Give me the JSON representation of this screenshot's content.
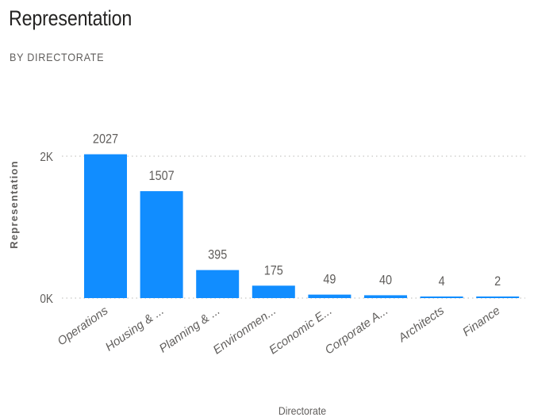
{
  "header": {
    "title": "Representation",
    "subtitle": "BY DIRECTORATE"
  },
  "chart_data": {
    "type": "bar",
    "title": "Representation",
    "subtitle": "BY DIRECTORATE",
    "xlabel": "Directorate",
    "ylabel": "Representation",
    "categories": [
      "Operations",
      "Housing & ...",
      "Planning & ...",
      "Environmen...",
      "Economic E...",
      "Corporate A...",
      "Architects",
      "Finance"
    ],
    "values": [
      2027,
      1507,
      395,
      175,
      49,
      40,
      4,
      2
    ],
    "data_labels": [
      "2027",
      "1507",
      "395",
      "175",
      "49",
      "40",
      "4",
      "2"
    ],
    "yticks": [
      0,
      2000
    ],
    "ytick_labels": [
      "0K",
      "2K"
    ],
    "ylim": [
      0,
      2000
    ],
    "grid": true,
    "legend": "none",
    "colors": {
      "bar": "#118dff",
      "gridline": "#c8c6c4",
      "text": "#605e5c",
      "title": "#252423"
    }
  }
}
